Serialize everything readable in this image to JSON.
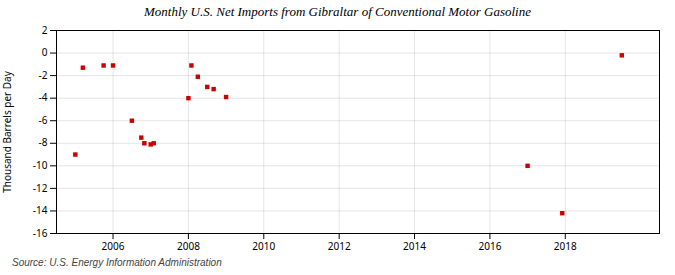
{
  "chart_data": {
    "type": "scatter",
    "title": "Monthly U.S. Net Imports from Gibraltar of Conventional Motor Gasoline",
    "ylabel": "Thousand Barrels per Day",
    "source": "Source: U.S. Energy Information Administration",
    "x": [
      2005.0,
      2005.2,
      2005.75,
      2006.0,
      2006.5,
      2006.75,
      2006.83,
      2007.0,
      2007.08,
      2008.0,
      2008.08,
      2008.25,
      2008.5,
      2008.67,
      2009.0,
      2017.0,
      2017.92,
      2019.5
    ],
    "values": [
      -9.0,
      -1.3,
      -1.1,
      -1.1,
      -6.0,
      -7.5,
      -8.0,
      -8.1,
      -8.0,
      -4.0,
      -1.1,
      -2.1,
      -3.0,
      -3.2,
      -3.9,
      -10.0,
      -14.2,
      -0.2
    ],
    "color": "#cc0000",
    "marker": "square",
    "xlim": [
      2004.5,
      2020.5
    ],
    "ylim": [
      -16,
      2
    ],
    "xticks": [
      2006,
      2008,
      2010,
      2012,
      2014,
      2016,
      2018
    ],
    "yticks": [
      2,
      0,
      -2,
      -4,
      -6,
      -8,
      -10,
      -12,
      -14,
      -16
    ],
    "grid": true
  }
}
